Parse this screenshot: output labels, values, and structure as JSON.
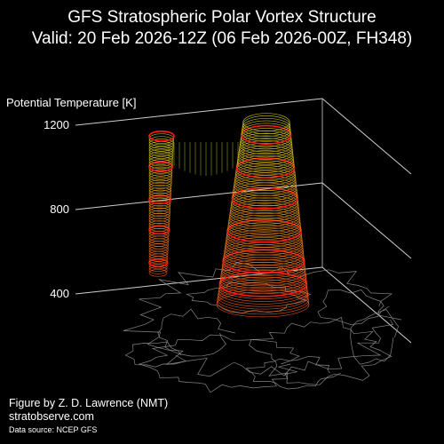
{
  "title": {
    "line1": "GFS Stratospheric Polar Vortex Structure",
    "line2": "Valid: 20 Feb 2026-12Z  (06 Feb 2026-00Z, FH348)"
  },
  "credits": {
    "figure_by": "Figure by Z. D. Lawrence (NMT)",
    "website": "stratobserve.com",
    "data_source": "Data source: NCEP GFS"
  },
  "colors": {
    "background": "#000000",
    "highlight_contour": "#ff1a1a",
    "low_level_contour": "#ff5a1a",
    "high_level_contour": "#d8d820",
    "map_lines": "#9a9a9a",
    "axis_lines": "#cfcfcf",
    "text": "#ffffff"
  },
  "chart_data": {
    "type": "3d-isosurface",
    "zlabel": "Potential Temperature [K]",
    "zticks": [
      400,
      800,
      1200
    ],
    "zlim": [
      350,
      1250
    ],
    "grid": true,
    "base_map": "northern-hemisphere-coastlines",
    "highlight_levels_K": [
      450,
      550,
      700,
      850,
      1000,
      1150
    ],
    "structures": [
      {
        "name": "main-lobe",
        "theta_range_K": [
          350,
          1220
        ]
      },
      {
        "name": "secondary-lobe",
        "theta_range_K": [
          500,
          1150
        ]
      }
    ]
  }
}
